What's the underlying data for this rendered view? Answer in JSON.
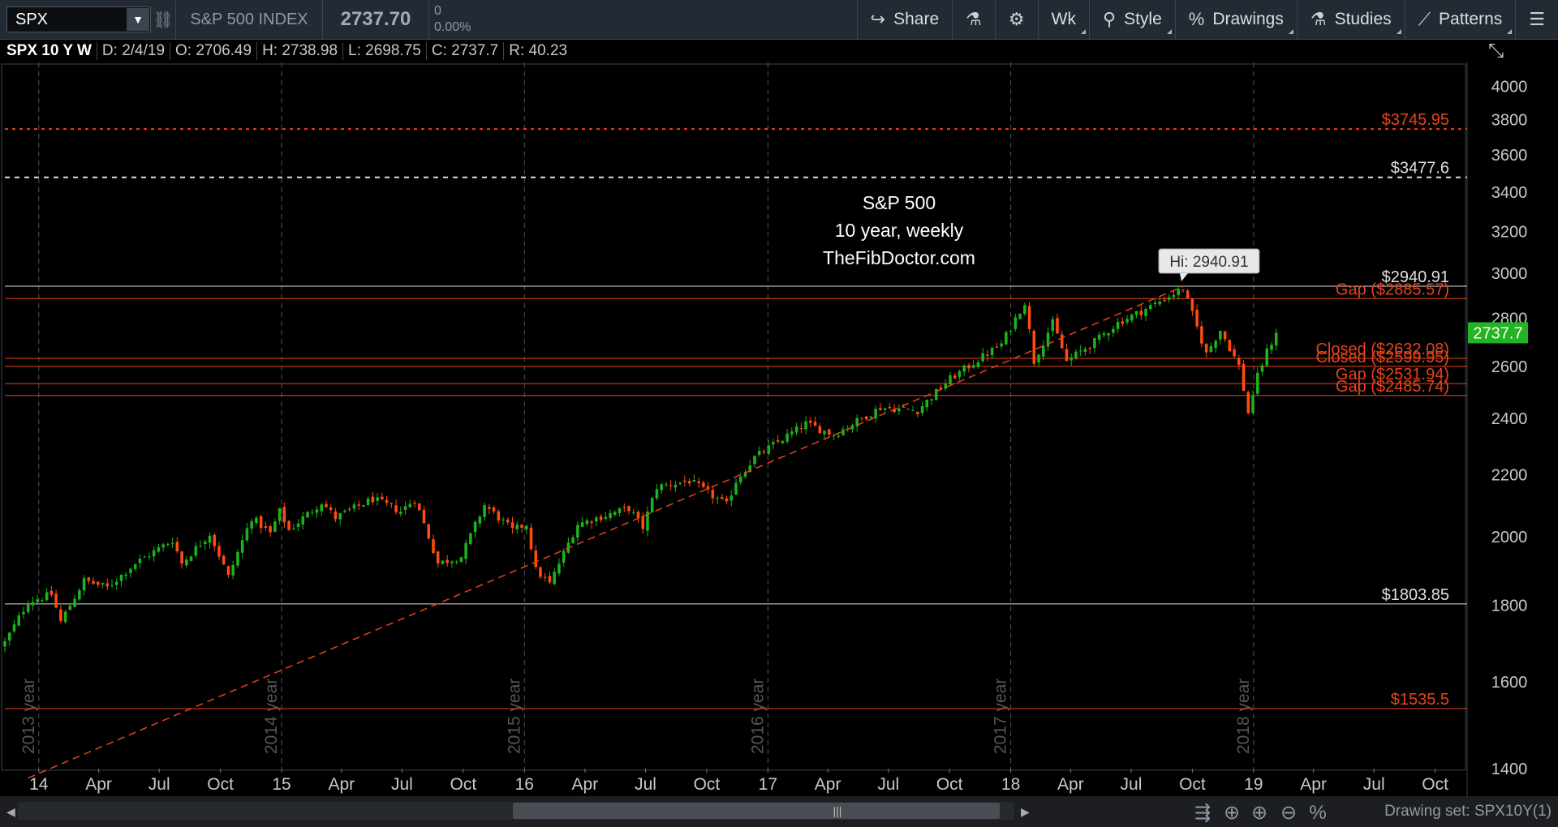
{
  "toolbar": {
    "symbol": "SPX",
    "index_name": "S&P 500 INDEX",
    "last_price": "2737.70",
    "change": "0",
    "change_pct": "0.00%",
    "buttons": {
      "share": "Share",
      "aggregation": "Wk",
      "style": "Style",
      "drawings": "Drawings",
      "studies": "Studies",
      "patterns": "Patterns"
    },
    "icons": [
      "link-icon",
      "share-icon",
      "flask-icon",
      "gear-icon",
      "style-icon",
      "percent-icon",
      "studies-flask-icon",
      "patterns-icon",
      "menu-icon"
    ]
  },
  "info_bar": {
    "title": "SPX 10 Y W",
    "date": "D: 2/4/19",
    "open": "O: 2706.49",
    "high": "H: 2738.98",
    "low": "L: 2698.75",
    "close": "C: 2737.7",
    "range": "R: 40.23"
  },
  "drawing_set": "Drawing set: SPX10Y(1)",
  "colors": {
    "up": "#1bb41b",
    "down": "#ff4b12",
    "red_line": "#e8441a",
    "white_line": "#e0e0e0",
    "price_tag": "#22b422"
  },
  "chart_data": {
    "type": "candlestick",
    "title_lines": [
      "S&P 500",
      "10 year, weekly",
      "TheFibDoctor.com"
    ],
    "y_scale": "log",
    "ylim": [
      1400,
      4150
    ],
    "y_ticks": [
      1400,
      1600,
      1800,
      2000,
      2200,
      2400,
      2600,
      2800,
      3000,
      3200,
      3400,
      3600,
      3800,
      4000
    ],
    "x_range": [
      "2013-11-11",
      "2019-11-18"
    ],
    "x_ticks": [
      {
        "date": "2014-01-01",
        "label": "14"
      },
      {
        "date": "2014-04-01",
        "label": "Apr"
      },
      {
        "date": "2014-07-01",
        "label": "Jul"
      },
      {
        "date": "2014-10-01",
        "label": "Oct"
      },
      {
        "date": "2015-01-01",
        "label": "15"
      },
      {
        "date": "2015-04-01",
        "label": "Apr"
      },
      {
        "date": "2015-07-01",
        "label": "Jul"
      },
      {
        "date": "2015-10-01",
        "label": "Oct"
      },
      {
        "date": "2016-01-01",
        "label": "16"
      },
      {
        "date": "2016-04-01",
        "label": "Apr"
      },
      {
        "date": "2016-07-01",
        "label": "Jul"
      },
      {
        "date": "2016-10-01",
        "label": "Oct"
      },
      {
        "date": "2017-01-01",
        "label": "17"
      },
      {
        "date": "2017-04-01",
        "label": "Apr"
      },
      {
        "date": "2017-07-01",
        "label": "Jul"
      },
      {
        "date": "2017-10-01",
        "label": "Oct"
      },
      {
        "date": "2018-01-01",
        "label": "18"
      },
      {
        "date": "2018-04-01",
        "label": "Apr"
      },
      {
        "date": "2018-07-01",
        "label": "Jul"
      },
      {
        "date": "2018-10-01",
        "label": "Oct"
      },
      {
        "date": "2019-01-01",
        "label": "19"
      },
      {
        "date": "2019-04-01",
        "label": "Apr"
      },
      {
        "date": "2019-07-01",
        "label": "Jul"
      },
      {
        "date": "2019-10-01",
        "label": "Oct"
      }
    ],
    "year_separators": [
      {
        "date": "2014-01-01",
        "label": "2013 year"
      },
      {
        "date": "2015-01-01",
        "label": "2014 year"
      },
      {
        "date": "2016-01-01",
        "label": "2015 year"
      },
      {
        "date": "2017-01-01",
        "label": "2016 year"
      },
      {
        "date": "2018-01-01",
        "label": "2017 year"
      },
      {
        "date": "2019-01-01",
        "label": "2018 year"
      }
    ],
    "horizontal_levels": [
      {
        "value": 3745.95,
        "label": "$3745.95",
        "color": "red",
        "style": "dotted"
      },
      {
        "value": 3477.6,
        "label": "$3477.6",
        "color": "white",
        "style": "dashed"
      },
      {
        "value": 2940.91,
        "label": "$2940.91",
        "color": "white",
        "style": "solid"
      },
      {
        "value": 2885.57,
        "label": "Gap ($2885.57)",
        "color": "red",
        "style": "solid"
      },
      {
        "value": 2632.08,
        "label": "Closed ($2632.08)",
        "color": "red",
        "style": "solid"
      },
      {
        "value": 2599.95,
        "label": "Closed ($2599.95)",
        "color": "red",
        "style": "solid"
      },
      {
        "value": 2531.94,
        "label": "Gap ($2531.94)",
        "color": "red",
        "style": "solid"
      },
      {
        "value": 2485.74,
        "label": "Gap ($2485.74)",
        "color": "red",
        "style": "solid"
      },
      {
        "value": 1803.85,
        "label": "$1803.85",
        "color": "white",
        "style": "solid"
      },
      {
        "value": 1535.5,
        "label": "$1535.5",
        "color": "red",
        "style": "solid"
      }
    ],
    "trendline": {
      "from": {
        "date": "2013-12-16",
        "value": 1380
      },
      "to": {
        "date": "2018-09-17",
        "value": 2940
      },
      "color": "red",
      "style": "dashed"
    },
    "high_bubble": {
      "label": "Hi: 2940.91",
      "date": "2018-09-17",
      "value": 2940.91
    },
    "current_price": {
      "label": "2737.7",
      "value": 2737.7
    },
    "path": [
      [
        "2013-11-11",
        1700
      ],
      [
        "2013-12-16",
        1810
      ],
      [
        "2014-01-20",
        1830
      ],
      [
        "2014-02-03",
        1755
      ],
      [
        "2014-03-10",
        1870
      ],
      [
        "2014-04-14",
        1850
      ],
      [
        "2014-05-26",
        1920
      ],
      [
        "2014-07-21",
        1990
      ],
      [
        "2014-08-04",
        1920
      ],
      [
        "2014-09-15",
        2010
      ],
      [
        "2014-10-13",
        1880
      ],
      [
        "2014-11-17",
        2060
      ],
      [
        "2014-12-15",
        2010
      ],
      [
        "2014-12-29",
        2080
      ],
      [
        "2015-01-12",
        2020
      ],
      [
        "2015-03-02",
        2110
      ],
      [
        "2015-03-23",
        2060
      ],
      [
        "2015-05-18",
        2120
      ],
      [
        "2015-06-29",
        2080
      ],
      [
        "2015-07-20",
        2120
      ],
      [
        "2015-08-24",
        1920
      ],
      [
        "2015-09-28",
        1940
      ],
      [
        "2015-11-02",
        2100
      ],
      [
        "2015-12-14",
        2020
      ],
      [
        "2016-01-04",
        2040
      ],
      [
        "2016-01-18",
        1900
      ],
      [
        "2016-02-08",
        1860
      ],
      [
        "2016-03-21",
        2040
      ],
      [
        "2016-06-06",
        2090
      ],
      [
        "2016-06-27",
        2030
      ],
      [
        "2016-07-18",
        2160
      ],
      [
        "2016-09-05",
        2180
      ],
      [
        "2016-10-31",
        2100
      ],
      [
        "2016-11-14",
        2180
      ],
      [
        "2016-12-12",
        2260
      ],
      [
        "2017-02-27",
        2380
      ],
      [
        "2017-04-10",
        2340
      ],
      [
        "2017-06-19",
        2440
      ],
      [
        "2017-08-14",
        2430
      ],
      [
        "2017-10-02",
        2550
      ],
      [
        "2017-12-18",
        2690
      ],
      [
        "2018-01-22",
        2870
      ],
      [
        "2018-02-05",
        2620
      ],
      [
        "2018-03-05",
        2780
      ],
      [
        "2018-03-26",
        2620
      ],
      [
        "2018-05-07",
        2700
      ],
      [
        "2018-06-11",
        2780
      ],
      [
        "2018-07-23",
        2840
      ],
      [
        "2018-09-17",
        2930
      ],
      [
        "2018-10-08",
        2760
      ],
      [
        "2018-10-22",
        2650
      ],
      [
        "2018-11-12",
        2750
      ],
      [
        "2018-12-10",
        2600
      ],
      [
        "2018-12-24",
        2420
      ],
      [
        "2019-01-07",
        2560
      ],
      [
        "2019-01-21",
        2660
      ],
      [
        "2019-02-04",
        2737.7
      ]
    ]
  }
}
